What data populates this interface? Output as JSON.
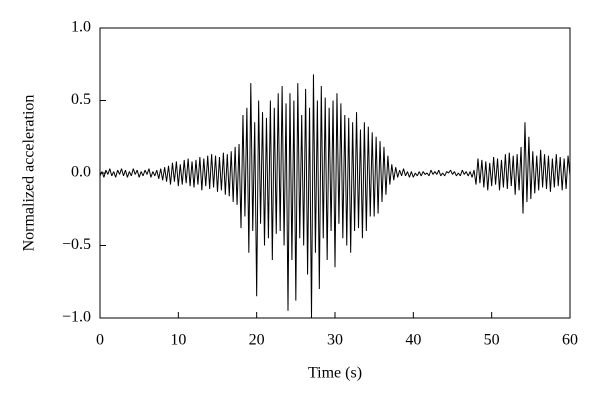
{
  "chart_data": {
    "type": "line",
    "xlabel": "Time (s)",
    "ylabel": "Normalized acceleration",
    "color": "#000000",
    "xlim": [
      0,
      60
    ],
    "xticks": [
      0,
      10,
      20,
      30,
      40,
      50,
      60
    ],
    "ylim": [
      -1,
      1
    ],
    "yticks": [
      {
        "value": -1,
        "label": "−1.0"
      },
      {
        "value": -0.5,
        "label": "−0.5"
      },
      {
        "value": 0,
        "label": "0.0"
      },
      {
        "value": 0.5,
        "label": "0.5"
      },
      {
        "value": 1,
        "label": "1.0"
      }
    ],
    "x": [
      0,
      0.25,
      0.5,
      0.75,
      1,
      1.25,
      1.5,
      1.75,
      2,
      2.25,
      2.5,
      2.75,
      3,
      3.25,
      3.5,
      3.75,
      4,
      4.25,
      4.5,
      4.75,
      5,
      5.25,
      5.5,
      5.75,
      6,
      6.25,
      6.5,
      6.75,
      7,
      7.25,
      7.5,
      7.75,
      8,
      8.25,
      8.5,
      8.75,
      9,
      9.25,
      9.5,
      9.75,
      10,
      10.25,
      10.5,
      10.75,
      11,
      11.25,
      11.5,
      11.75,
      12,
      12.25,
      12.5,
      12.75,
      13,
      13.25,
      13.5,
      13.75,
      14,
      14.25,
      14.5,
      14.75,
      15,
      15.25,
      15.5,
      15.75,
      16,
      16.25,
      16.5,
      16.75,
      17,
      17.25,
      17.5,
      17.75,
      18,
      18.25,
      18.5,
      18.75,
      19,
      19.25,
      19.5,
      19.75,
      20,
      20.25,
      20.5,
      20.75,
      21,
      21.25,
      21.5,
      21.75,
      22,
      22.25,
      22.5,
      22.75,
      23,
      23.25,
      23.5,
      23.75,
      24,
      24.25,
      24.5,
      24.75,
      25,
      25.25,
      25.5,
      25.75,
      26,
      26.25,
      26.5,
      26.75,
      27,
      27.25,
      27.5,
      27.75,
      28,
      28.25,
      28.5,
      28.75,
      29,
      29.25,
      29.5,
      29.75,
      30,
      30.25,
      30.5,
      30.75,
      31,
      31.25,
      31.5,
      31.75,
      32,
      32.25,
      32.5,
      32.75,
      33,
      33.25,
      33.5,
      33.75,
      34,
      34.25,
      34.5,
      34.75,
      35,
      35.25,
      35.5,
      35.75,
      36,
      36.25,
      36.5,
      36.75,
      37,
      37.25,
      37.5,
      37.75,
      38,
      38.25,
      38.5,
      38.75,
      39,
      39.25,
      39.5,
      39.75,
      40,
      40.25,
      40.5,
      40.75,
      41,
      41.25,
      41.5,
      41.75,
      42,
      42.25,
      42.5,
      42.75,
      43,
      43.25,
      43.5,
      43.75,
      44,
      44.25,
      44.5,
      44.75,
      45,
      45.25,
      45.5,
      45.75,
      46,
      46.25,
      46.5,
      46.75,
      47,
      47.25,
      47.5,
      47.75,
      48,
      48.25,
      48.5,
      48.75,
      49,
      49.25,
      49.5,
      49.75,
      50,
      50.25,
      50.5,
      50.75,
      51,
      51.25,
      51.5,
      51.75,
      52,
      52.25,
      52.5,
      52.75,
      53,
      53.25,
      53.5,
      53.75,
      54,
      54.25,
      54.5,
      54.75,
      55,
      55.25,
      55.5,
      55.75,
      56,
      56.25,
      56.5,
      56.75,
      57,
      57.25,
      57.5,
      57.75,
      58,
      58.25,
      58.5,
      58.75,
      59,
      59.25,
      59.5,
      59.75,
      60
    ],
    "values": [
      -0.02,
      0.01,
      -0.03,
      0.02,
      -0.01,
      0.03,
      -0.02,
      0.01,
      -0.03,
      0.02,
      -0.01,
      0.03,
      -0.02,
      0.02,
      -0.03,
      0.01,
      -0.02,
      0.03,
      -0.01,
      0.02,
      -0.03,
      0.01,
      -0.02,
      0.02,
      -0.01,
      0.03,
      -0.03,
      0.01,
      -0.02,
      0.02,
      -0.04,
      0.03,
      -0.05,
      0.04,
      -0.06,
      0.05,
      -0.08,
      0.07,
      -0.06,
      0.08,
      -0.09,
      0.06,
      -0.08,
      0.09,
      -0.07,
      0.1,
      -0.09,
      0.08,
      -0.1,
      0.09,
      -0.08,
      0.11,
      -0.12,
      0.1,
      -0.09,
      0.12,
      -0.11,
      0.13,
      -0.1,
      0.12,
      -0.13,
      0.11,
      -0.12,
      0.14,
      -0.15,
      0.13,
      -0.16,
      0.15,
      -0.2,
      0.18,
      -0.22,
      0.2,
      -0.38,
      0.4,
      -0.3,
      0.45,
      -0.55,
      0.62,
      -0.4,
      0.35,
      -0.85,
      0.5,
      -0.35,
      0.42,
      -0.5,
      0.38,
      -0.45,
      0.5,
      -0.6,
      0.45,
      -0.42,
      0.55,
      -0.4,
      0.6,
      -0.5,
      0.48,
      -0.95,
      0.55,
      -0.6,
      0.5,
      -0.88,
      0.62,
      -0.45,
      0.4,
      -0.5,
      0.58,
      -0.7,
      0.45,
      -1.0,
      0.68,
      -0.55,
      0.5,
      -0.8,
      0.6,
      -0.45,
      0.52,
      -0.6,
      0.45,
      -0.4,
      0.5,
      -0.65,
      0.55,
      -0.35,
      0.48,
      -0.45,
      0.4,
      -0.5,
      0.38,
      -0.55,
      0.35,
      -0.4,
      0.42,
      -0.38,
      0.3,
      -0.45,
      0.35,
      -0.4,
      0.32,
      -0.3,
      0.28,
      -0.3,
      0.25,
      -0.28,
      0.22,
      -0.2,
      0.18,
      -0.15,
      0.12,
      -0.08,
      0.06,
      -0.05,
      0.04,
      -0.03,
      0.02,
      -0.02,
      0.03,
      -0.02,
      0.01,
      -0.03,
      0.01,
      -0.03,
      0.0,
      -0.02,
      0.01,
      -0.02,
      0.01,
      -0.01,
      0.0,
      -0.02,
      0.02,
      -0.01,
      0.01,
      -0.01,
      0.02,
      -0.02,
      0.0,
      -0.02,
      0.01,
      0.0,
      0.02,
      -0.01,
      0.01,
      -0.02,
      0.0,
      -0.02,
      0.02,
      -0.01,
      0.01,
      -0.02,
      0.01,
      -0.03,
      0.02,
      -0.08,
      0.1,
      -0.07,
      0.09,
      -0.1,
      0.08,
      -0.12,
      0.07,
      -0.09,
      0.11,
      -0.08,
      0.1,
      -0.12,
      0.09,
      -0.1,
      0.13,
      -0.11,
      0.14,
      -0.09,
      0.12,
      -0.15,
      0.13,
      -0.12,
      0.18,
      -0.28,
      0.35,
      -0.2,
      0.25,
      -0.18,
      0.15,
      -0.14,
      0.12,
      -0.12,
      0.16,
      -0.1,
      0.13,
      -0.11,
      0.12,
      -0.13,
      0.1,
      -0.1,
      0.13,
      -0.09,
      0.11,
      -0.12,
      0.1,
      -0.11,
      0.12,
      -0.02
    ]
  }
}
